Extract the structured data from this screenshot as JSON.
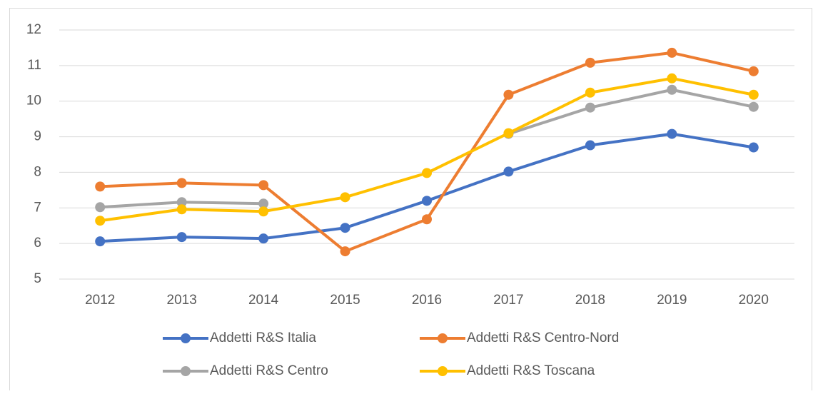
{
  "chart_data": {
    "type": "line",
    "x": [
      "2012",
      "2013",
      "2014",
      "2015",
      "2016",
      "2017",
      "2018",
      "2019",
      "2020"
    ],
    "series": [
      {
        "name": "Addetti R&S Italia",
        "color": "#4472c4",
        "values": [
          6.06,
          6.18,
          6.14,
          6.44,
          7.2,
          8.02,
          8.76,
          9.08,
          8.7
        ]
      },
      {
        "name": "Addetti R&S Centro-Nord",
        "color": "#ed7d31",
        "values": [
          7.6,
          7.7,
          7.64,
          5.78,
          6.68,
          10.18,
          11.08,
          11.36,
          10.84
        ]
      },
      {
        "name": "Addetti R&S Centro",
        "color": "#a5a5a5",
        "values": [
          7.02,
          7.16,
          7.12,
          null,
          null,
          9.08,
          9.82,
          10.32,
          9.84
        ]
      },
      {
        "name": "Addetti R&S Toscana",
        "color": "#ffc000",
        "values": [
          6.64,
          6.96,
          6.9,
          7.3,
          7.98,
          9.1,
          10.24,
          10.64,
          10.18
        ]
      }
    ],
    "ylim": [
      5,
      12
    ],
    "yticks": [
      5,
      6,
      7,
      8,
      9,
      10,
      11,
      12
    ],
    "grid": true,
    "legend": "bottom"
  }
}
